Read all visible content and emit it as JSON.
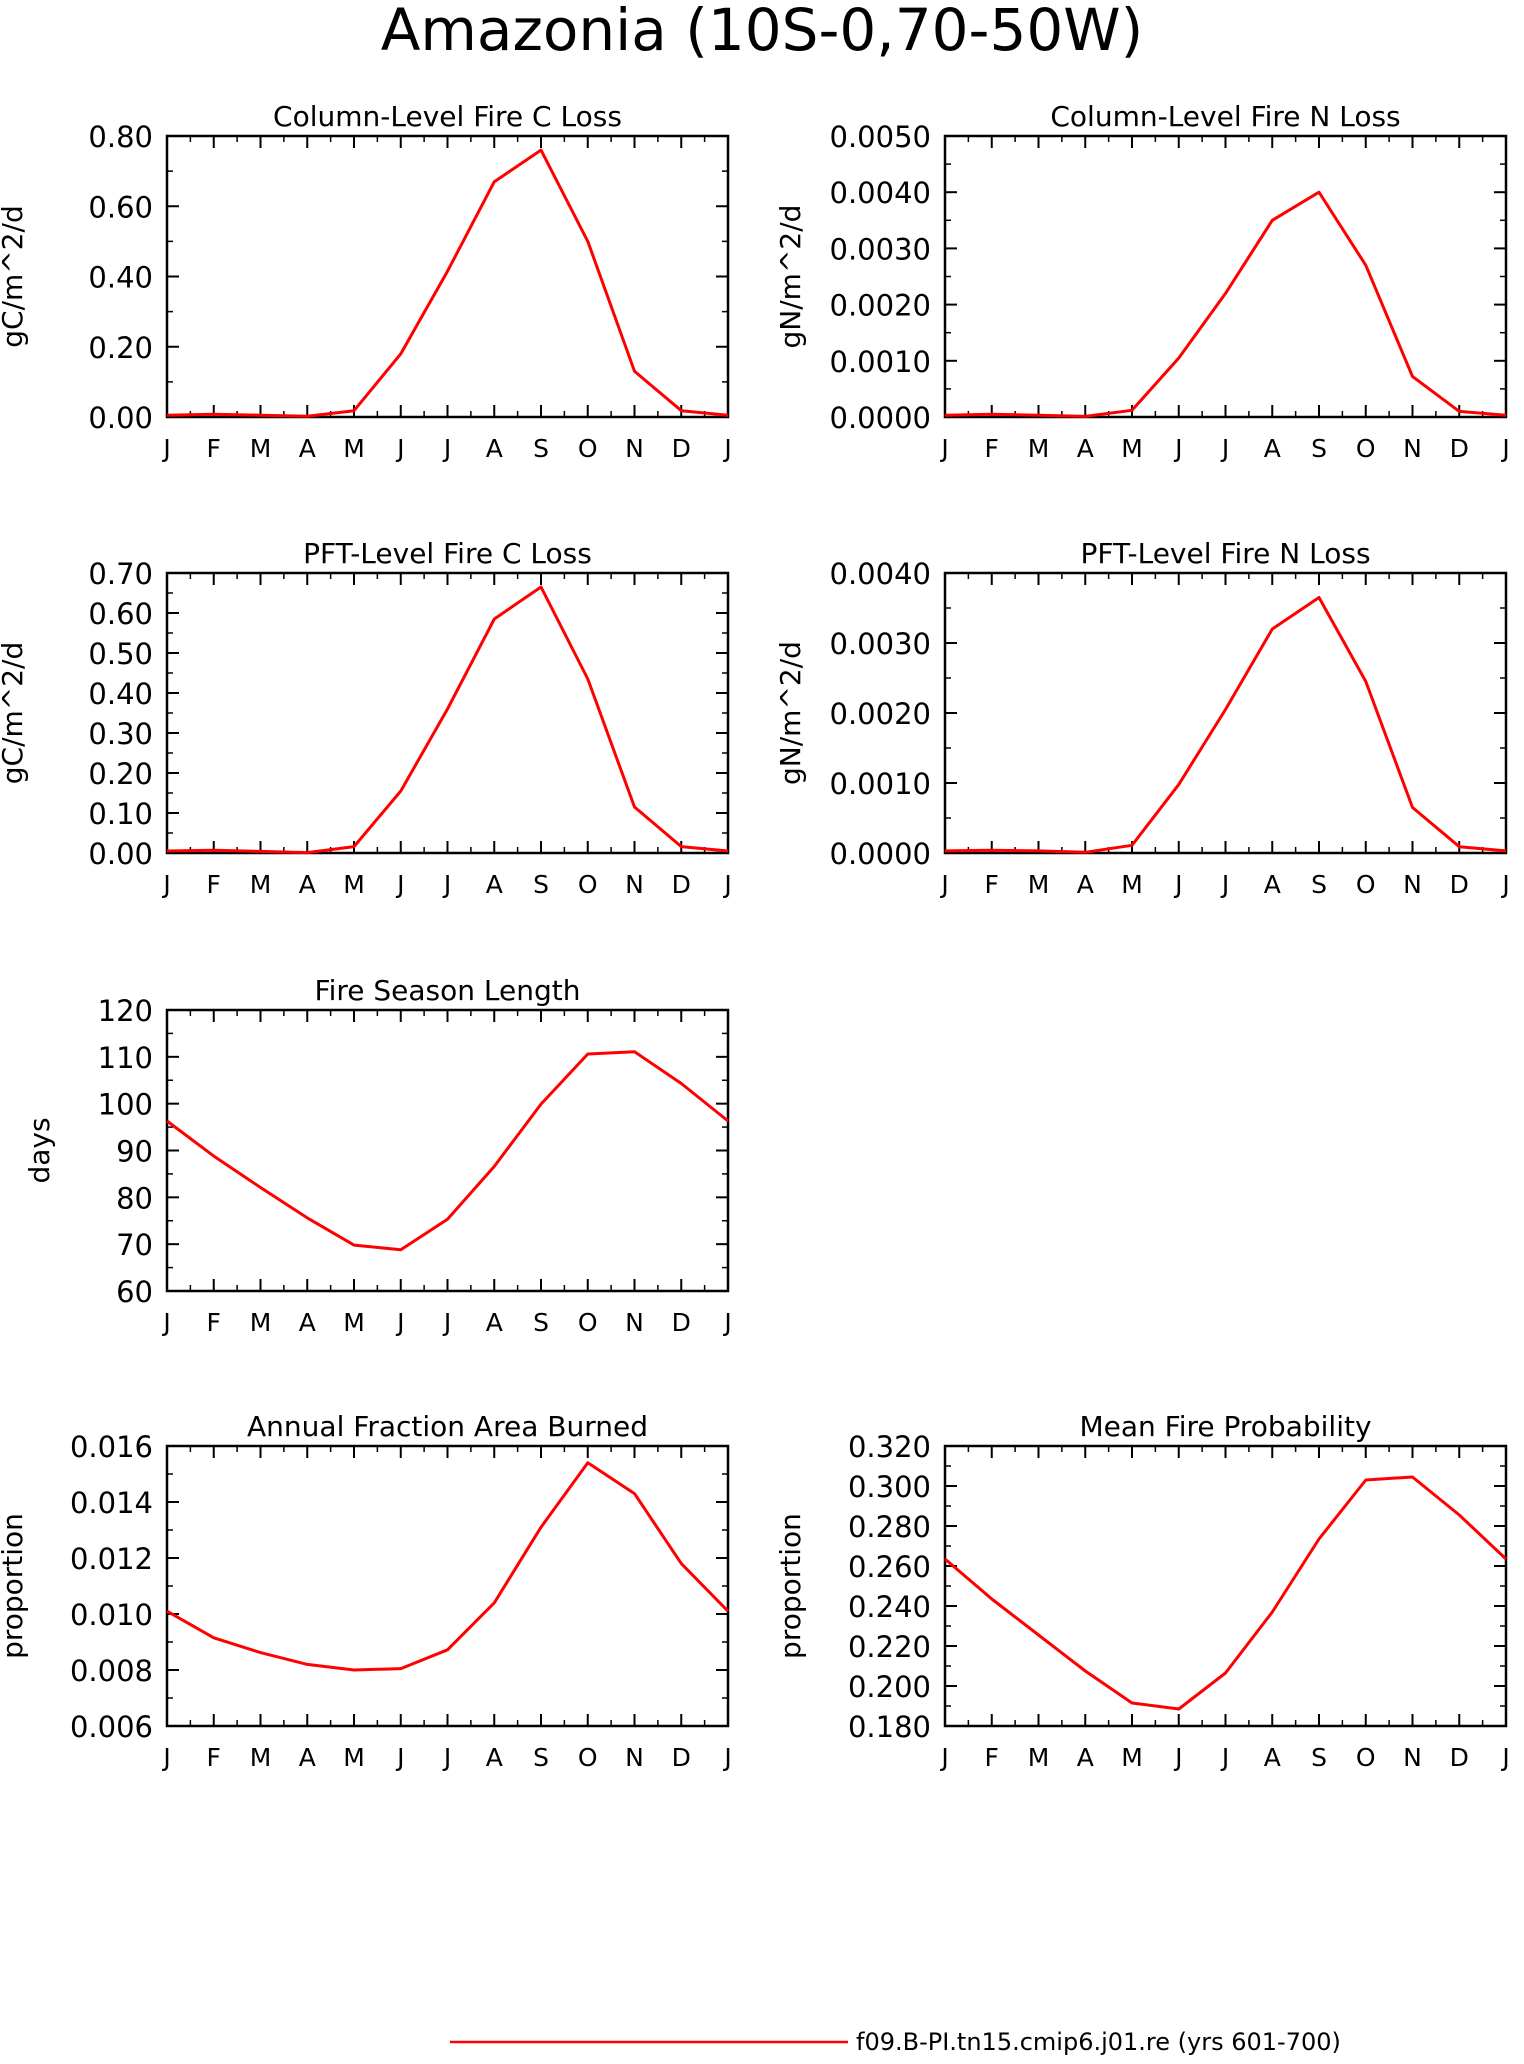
{
  "title": "Amazonia (10S-0,70-50W)",
  "legend": {
    "label": "f09.B-PI.tn15.cmip6.j01.re (yrs 601-700)",
    "color": "#ff0000"
  },
  "months": [
    "J",
    "F",
    "M",
    "A",
    "M",
    "J",
    "J",
    "A",
    "S",
    "O",
    "N",
    "D",
    "J"
  ],
  "chart_data": [
    {
      "type": "line",
      "title": "Column-Level Fire C Loss",
      "ylabel": "gC/m^2/d",
      "ylim": [
        0,
        0.8
      ],
      "yticks": [
        "0.00",
        "0.20",
        "0.40",
        "0.60",
        "0.80"
      ],
      "x": [
        "J",
        "F",
        "M",
        "A",
        "M",
        "J",
        "J",
        "A",
        "S",
        "O",
        "N",
        "D",
        "J"
      ],
      "series": [
        {
          "values": [
            0.005,
            0.008,
            0.005,
            0.002,
            0.018,
            0.18,
            0.415,
            0.67,
            0.76,
            0.5,
            0.13,
            0.018,
            0.005
          ]
        }
      ]
    },
    {
      "type": "line",
      "title": "Column-Level Fire N Loss",
      "ylabel": "gN/m^2/d",
      "ylim": [
        0,
        0.005
      ],
      "yticks": [
        "0.0000",
        "0.0010",
        "0.0020",
        "0.0030",
        "0.0040",
        "0.0050"
      ],
      "x": [
        "J",
        "F",
        "M",
        "A",
        "M",
        "J",
        "J",
        "A",
        "S",
        "O",
        "N",
        "D",
        "J"
      ],
      "series": [
        {
          "values": [
            3e-05,
            5e-05,
            3e-05,
            1e-05,
            0.00012,
            0.00105,
            0.0022,
            0.0035,
            0.004,
            0.0027,
            0.00072,
            0.0001,
            3e-05
          ]
        }
      ]
    },
    {
      "type": "line",
      "title": "PFT-Level Fire C Loss",
      "ylabel": "gC/m^2/d",
      "ylim": [
        0,
        0.7
      ],
      "yticks": [
        "0.00",
        "0.10",
        "0.20",
        "0.30",
        "0.40",
        "0.50",
        "0.60",
        "0.70"
      ],
      "x": [
        "J",
        "F",
        "M",
        "A",
        "M",
        "J",
        "J",
        "A",
        "S",
        "O",
        "N",
        "D",
        "J"
      ],
      "series": [
        {
          "values": [
            0.005,
            0.007,
            0.004,
            0.001,
            0.016,
            0.155,
            0.36,
            0.585,
            0.665,
            0.435,
            0.115,
            0.016,
            0.005
          ]
        }
      ]
    },
    {
      "type": "line",
      "title": "PFT-Level Fire N Loss",
      "ylabel": "gN/m^2/d",
      "ylim": [
        0,
        0.004
      ],
      "yticks": [
        "0.0000",
        "0.0010",
        "0.0020",
        "0.0030",
        "0.0040"
      ],
      "x": [
        "J",
        "F",
        "M",
        "A",
        "M",
        "J",
        "J",
        "A",
        "S",
        "O",
        "N",
        "D",
        "J"
      ],
      "series": [
        {
          "values": [
            3e-05,
            4e-05,
            3e-05,
            1e-05,
            0.00011,
            0.00098,
            0.00205,
            0.0032,
            0.00365,
            0.00245,
            0.00065,
            9e-05,
            3e-05
          ]
        }
      ]
    },
    {
      "type": "line",
      "title": "Fire Season Length",
      "ylabel": "days",
      "ylim": [
        60,
        120
      ],
      "yticks": [
        "60",
        "70",
        "80",
        "90",
        "100",
        "110",
        "120"
      ],
      "x": [
        "J",
        "F",
        "M",
        "A",
        "M",
        "J",
        "J",
        "A",
        "S",
        "O",
        "N",
        "D",
        "J"
      ],
      "series": [
        {
          "values": [
            96.3,
            88.8,
            82.1,
            75.6,
            69.8,
            68.8,
            75.3,
            86.6,
            99.9,
            110.6,
            111.1,
            104.3,
            96.3
          ]
        }
      ]
    },
    {
      "type": "line",
      "title": "Annual Fraction Area Burned",
      "ylabel": "proportion",
      "ylim": [
        0.006,
        0.016
      ],
      "yticks": [
        "0.006",
        "0.008",
        "0.010",
        "0.012",
        "0.014",
        "0.016"
      ],
      "x": [
        "J",
        "F",
        "M",
        "A",
        "M",
        "J",
        "J",
        "A",
        "S",
        "O",
        "N",
        "D",
        "J"
      ],
      "series": [
        {
          "values": [
            0.0101,
            0.00915,
            0.00862,
            0.0082,
            0.008,
            0.00805,
            0.00872,
            0.0104,
            0.0131,
            0.0154,
            0.0143,
            0.0118,
            0.0101
          ]
        }
      ]
    },
    {
      "type": "line",
      "title": "Mean Fire Probability",
      "ylabel": "proportion",
      "ylim": [
        0.18,
        0.32
      ],
      "yticks": [
        "0.180",
        "0.200",
        "0.220",
        "0.240",
        "0.260",
        "0.280",
        "0.300",
        "0.320"
      ],
      "x": [
        "J",
        "F",
        "M",
        "A",
        "M",
        "J",
        "J",
        "A",
        "S",
        "O",
        "N",
        "D",
        "J"
      ],
      "series": [
        {
          "values": [
            0.2635,
            0.2435,
            0.2255,
            0.2075,
            0.1915,
            0.1885,
            0.2065,
            0.237,
            0.2735,
            0.303,
            0.3045,
            0.2855,
            0.2635
          ]
        }
      ]
    }
  ]
}
